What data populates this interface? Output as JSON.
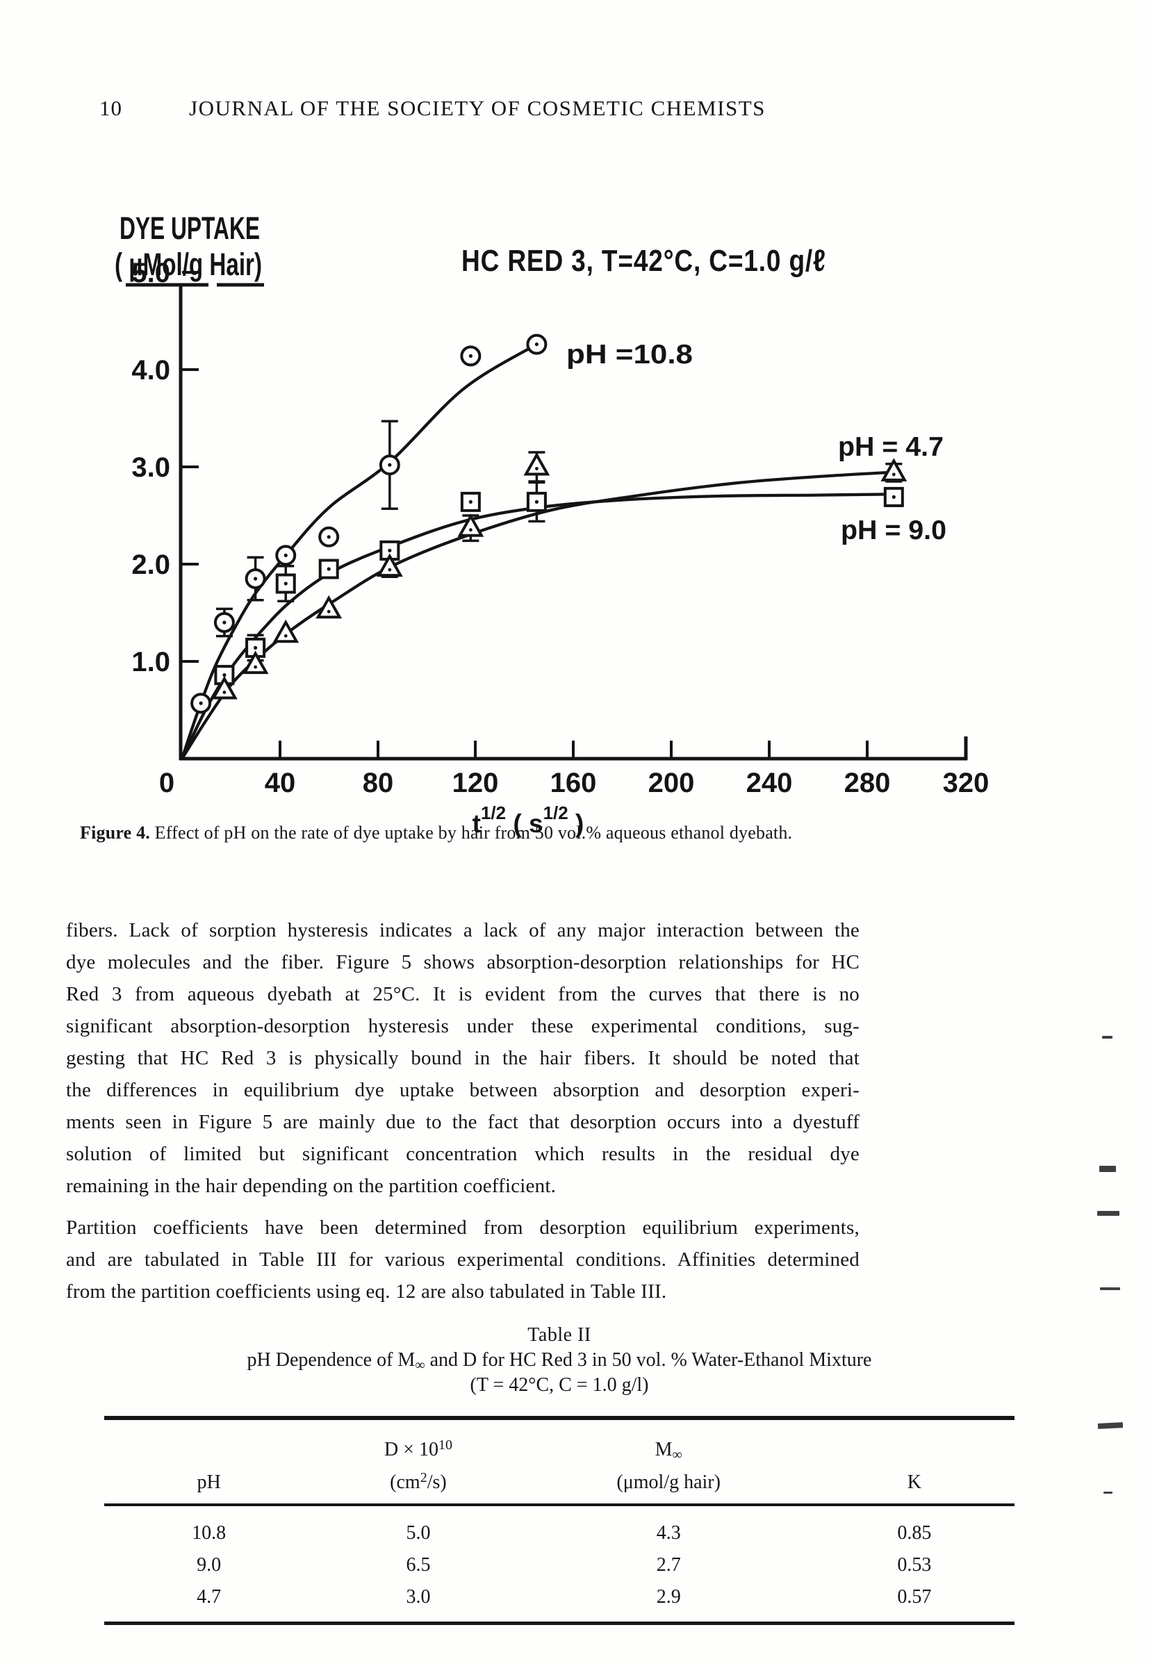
{
  "header": {
    "page_number": "10",
    "journal_title": "JOURNAL OF THE SOCIETY OF COSMETIC CHEMISTS"
  },
  "chart_data": {
    "type": "line",
    "title": "HC RED 3, T=42°C, C=1.0 g/ℓ",
    "ylabel_line1": "DYE UPTAKE",
    "ylabel_line2": "( μMol/g Hair)",
    "xlabel": "t^1/2 (s^1/2)",
    "xlabel_parts": [
      "t",
      "1/2",
      " ( s",
      "1/2",
      " )"
    ],
    "x_ticks": [
      "0",
      "40",
      "80",
      "120",
      "160",
      "200",
      "240",
      "280",
      "320"
    ],
    "y_ticks": [
      "5.0",
      "4.0",
      "3.0",
      "2.0",
      "1.0"
    ],
    "xlim": [
      0,
      330
    ],
    "ylim": [
      0,
      5.4
    ],
    "grid": false,
    "legend_position": "inline-annotations",
    "series": [
      {
        "name": "pH 10.8",
        "label": "pH =10.8",
        "marker": "circle",
        "points": [
          {
            "x": 7.7,
            "y": 0.57
          },
          {
            "x": 17.3,
            "y": 1.4,
            "err": 0.14
          },
          {
            "x": 30,
            "y": 1.85,
            "err": 0.22
          },
          {
            "x": 42.4,
            "y": 2.09
          },
          {
            "x": 60,
            "y": 2.28
          },
          {
            "x": 84.9,
            "y": 3.02,
            "err": 0.45
          },
          {
            "x": 118,
            "y": 4.14
          },
          {
            "x": 145,
            "y": 4.26
          }
        ],
        "curve": [
          [
            0,
            0
          ],
          [
            6,
            0.45
          ],
          [
            13,
            0.92
          ],
          [
            21,
            1.32
          ],
          [
            30,
            1.7
          ],
          [
            42.4,
            2.09
          ],
          [
            60,
            2.58
          ],
          [
            85,
            3.05
          ],
          [
            115,
            3.8
          ],
          [
            145,
            4.26
          ]
        ]
      },
      {
        "name": "pH 9.0",
        "label": "pH = 9.0",
        "marker": "square",
        "points": [
          {
            "x": 17.3,
            "y": 0.86
          },
          {
            "x": 30,
            "y": 1.14,
            "err": 0.13
          },
          {
            "x": 42.4,
            "y": 1.8,
            "err": 0.18
          },
          {
            "x": 60,
            "y": 1.95
          },
          {
            "x": 84.9,
            "y": 2.14
          },
          {
            "x": 118,
            "y": 2.64
          },
          {
            "x": 145,
            "y": 2.64,
            "err": 0.2
          },
          {
            "x": 291,
            "y": 2.69,
            "err": 0.09
          }
        ],
        "curve": [
          [
            0,
            0
          ],
          [
            10,
            0.52
          ],
          [
            20,
            0.93
          ],
          [
            32,
            1.3
          ],
          [
            45,
            1.63
          ],
          [
            62,
            1.93
          ],
          [
            85,
            2.18
          ],
          [
            115,
            2.44
          ],
          [
            145,
            2.58
          ],
          [
            180,
            2.66
          ],
          [
            220,
            2.7
          ],
          [
            260,
            2.71
          ],
          [
            294,
            2.72
          ]
        ]
      },
      {
        "name": "pH 4.7",
        "label": "pH = 4.7",
        "marker": "triangle",
        "points": [
          {
            "x": 17.3,
            "y": 0.7
          },
          {
            "x": 30,
            "y": 0.96
          },
          {
            "x": 42.4,
            "y": 1.28
          },
          {
            "x": 60,
            "y": 1.53
          },
          {
            "x": 84.9,
            "y": 1.96,
            "err": 0.09
          },
          {
            "x": 118,
            "y": 2.37,
            "err": 0.13
          },
          {
            "x": 145,
            "y": 3.0,
            "err": 0.15
          },
          {
            "x": 291,
            "y": 2.94,
            "err": 0.09
          }
        ],
        "curve": [
          [
            0,
            0
          ],
          [
            10,
            0.4
          ],
          [
            20,
            0.76
          ],
          [
            32,
            1.06
          ],
          [
            45,
            1.33
          ],
          [
            62,
            1.62
          ],
          [
            85,
            1.97
          ],
          [
            115,
            2.28
          ],
          [
            150,
            2.55
          ],
          [
            185,
            2.7
          ],
          [
            225,
            2.83
          ],
          [
            260,
            2.9
          ],
          [
            294,
            2.95
          ]
        ]
      }
    ]
  },
  "caption": {
    "figure_label": "Figure 4.",
    "text": " Effect of pH on the rate of dye uptake by hair from 50 vol.% aqueous ethanol dyebath."
  },
  "body": {
    "p1": {
      "lines": [
        "fibers. Lack of sorption hysteresis indicates a lack of any major interaction between the",
        "dye molecules and the fiber. Figure 5 shows absorption-desorption relationships for HC",
        "Red 3 from aqueous dyebath at 25°C. It is evident from the curves that there is no",
        "significant absorption-desorption hysteresis under these experimental conditions, sug-",
        "gesting that HC Red 3 is physically bound in the hair fibers. It should be noted that",
        "the differences in equilibrium dye uptake between absorption and desorption experi-",
        "ments seen in Figure 5 are mainly due to the fact that desorption occurs into a dyestuff",
        "solution of limited but significant concentration which results in the residual dye",
        "remaining in the hair depending on the partition coefficient."
      ]
    },
    "p2": {
      "lines": [
        "Partition coefficients have been determined from desorption equilibrium experiments,",
        "and are tabulated in Table III for various experimental conditions. Affinities determined",
        "from the partition coefficients using eq. 12 are also tabulated in Table III."
      ]
    }
  },
  "table": {
    "title": "Table II",
    "subtitle_pre": "pH Dependence of M",
    "subtitle_sub": "∞",
    "subtitle_post": " and D for HC Red 3 in 50 vol. % Water-Ethanol Mixture",
    "condition": "(T = 42°C, C = 1.0 g/l)",
    "col1_header": "pH",
    "col2_header_base": "D × 10",
    "col2_header_exp": "10",
    "col2_unit_pre": "(cm",
    "col2_unit_exp": "2",
    "col2_unit_post": "/s)",
    "col3_header_base": "M",
    "col3_header_sub": "∞",
    "col3_unit": "(μmol/g hair)",
    "col4_header": "K",
    "rows": [
      [
        "10.8",
        "5.0",
        "4.3",
        "0.85"
      ],
      [
        "9.0",
        "6.5",
        "2.7",
        "0.53"
      ],
      [
        "4.7",
        "3.0",
        "2.9",
        "0.57"
      ]
    ]
  },
  "ink_color": "#141414",
  "paper_color": "#fefefd"
}
